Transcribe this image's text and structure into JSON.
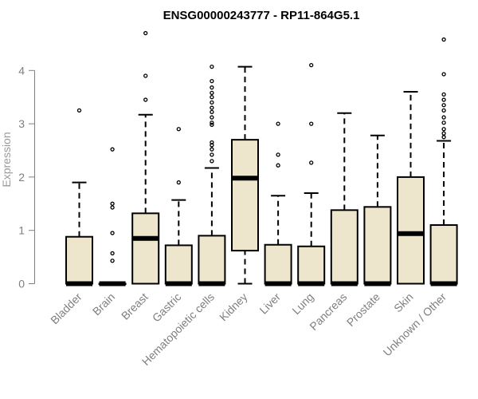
{
  "chart_data": {
    "type": "box",
    "title": "ENSG00000243777 - RP11-864G5.1",
    "xlabel": "",
    "ylabel": "Expression",
    "ylim": [
      0,
      4.7
    ],
    "yticks": [
      0,
      1,
      2,
      3,
      4
    ],
    "box_fill": "#ede6cd",
    "grid": false,
    "categories": [
      "Bladder",
      "Brain",
      "Breast",
      "Gastric",
      "Hematopoietic cells",
      "Kidney",
      "Liver",
      "Lung",
      "Pancreas",
      "Prostate",
      "Skin",
      "Unknown / Other"
    ],
    "boxes": [
      {
        "q1": 0,
        "median": 0,
        "q3": 0.88,
        "whisker_low": 0,
        "whisker_high": 1.9,
        "outliers": [
          3.25
        ]
      },
      {
        "q1": 0,
        "median": 0,
        "q3": 0,
        "whisker_low": 0,
        "whisker_high": 0,
        "outliers": [
          0.43,
          0.57,
          0.95,
          1.43,
          1.5,
          2.52
        ]
      },
      {
        "q1": 0,
        "median": 0.85,
        "q3": 1.32,
        "whisker_low": 0,
        "whisker_high": 3.17,
        "outliers": [
          3.45,
          3.9,
          4.7
        ]
      },
      {
        "q1": 0,
        "median": 0,
        "q3": 0.72,
        "whisker_low": 0,
        "whisker_high": 1.57,
        "outliers": [
          1.9,
          2.9
        ]
      },
      {
        "q1": 0,
        "median": 0,
        "q3": 0.9,
        "whisker_low": 0,
        "whisker_high": 2.17,
        "outliers": [
          2.3,
          2.42,
          2.52,
          2.6,
          2.65,
          2.98,
          3.02,
          3.12,
          3.22,
          3.3,
          3.4,
          3.5,
          3.58,
          3.68,
          3.8,
          4.07
        ]
      },
      {
        "q1": 0.62,
        "median": 1.98,
        "q3": 2.7,
        "whisker_low": 0,
        "whisker_high": 4.07,
        "outliers": []
      },
      {
        "q1": 0,
        "median": 0,
        "q3": 0.73,
        "whisker_low": 0,
        "whisker_high": 1.65,
        "outliers": [
          2.22,
          2.42,
          3.0
        ]
      },
      {
        "q1": 0,
        "median": 0,
        "q3": 0.7,
        "whisker_low": 0,
        "whisker_high": 1.7,
        "outliers": [
          2.27,
          3.0,
          4.1
        ]
      },
      {
        "q1": 0,
        "median": 0,
        "q3": 1.38,
        "whisker_low": 0,
        "whisker_high": 3.2,
        "outliers": []
      },
      {
        "q1": 0,
        "median": 0,
        "q3": 1.44,
        "whisker_low": 0,
        "whisker_high": 2.78,
        "outliers": []
      },
      {
        "q1": 0,
        "median": 0.94,
        "q3": 2.0,
        "whisker_low": 0,
        "whisker_high": 3.6,
        "outliers": []
      },
      {
        "q1": 0,
        "median": 0,
        "q3": 1.1,
        "whisker_low": 0,
        "whisker_high": 2.68,
        "outliers": [
          2.75,
          2.82,
          2.9,
          3.02,
          3.12,
          3.25,
          3.35,
          3.45,
          3.55,
          3.93,
          4.58
        ]
      }
    ]
  }
}
